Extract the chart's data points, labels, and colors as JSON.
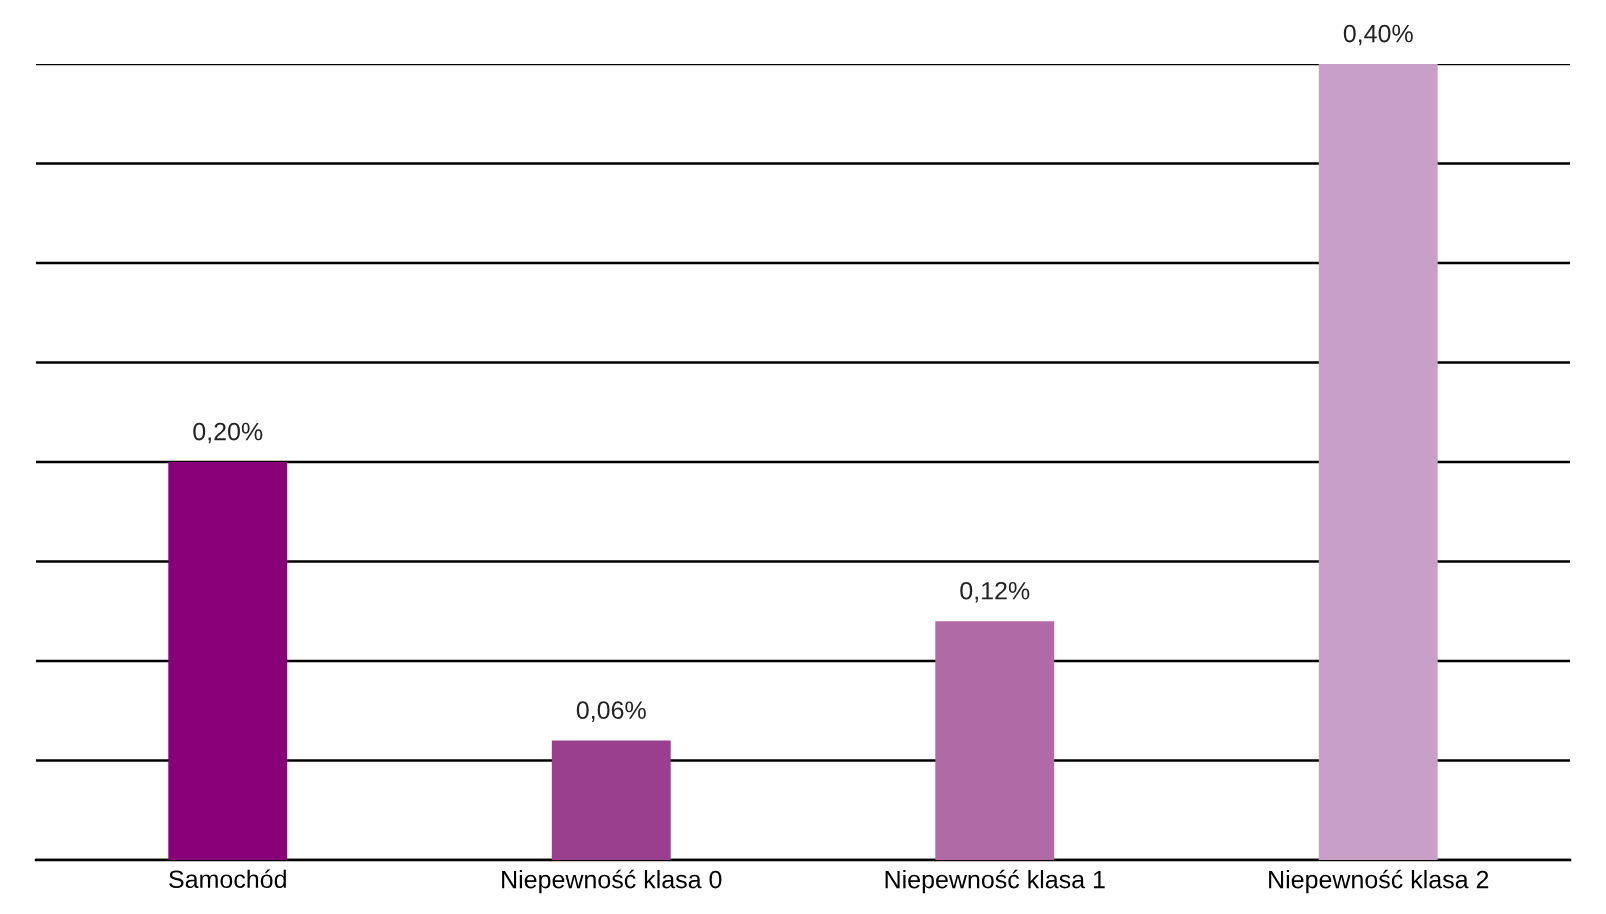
{
  "chart_data": {
    "type": "bar",
    "categories": [
      "Samochód",
      "Niepewność klasa 0",
      "Niepewność klasa 1",
      "Niepewność klasa 2"
    ],
    "values": [
      0.2,
      0.06,
      0.12,
      0.4
    ],
    "colors": [
      "#880077",
      "#9a3f8e",
      "#b06aa6",
      "#c79fc7"
    ],
    "value_labels": [
      "0,20%",
      "0,06%",
      "0,12%",
      "0,40%"
    ],
    "ylim": [
      0,
      0.4
    ],
    "yticks": [
      {
        "value": 0,
        "label": null
      },
      {
        "value": 0.05,
        "label": null
      },
      {
        "value": 0.1,
        "label": null
      },
      {
        "value": 0.15,
        "label": null
      },
      {
        "value": 0.2,
        "label": null
      },
      {
        "value": 0.25,
        "label": null
      },
      {
        "value": 0.3,
        "label": null
      },
      {
        "value": 0.35,
        "label": null
      },
      {
        "value": 0.4,
        "label": null
      }
    ],
    "grid": "y",
    "tick_labels": "x",
    "legend": false
  }
}
